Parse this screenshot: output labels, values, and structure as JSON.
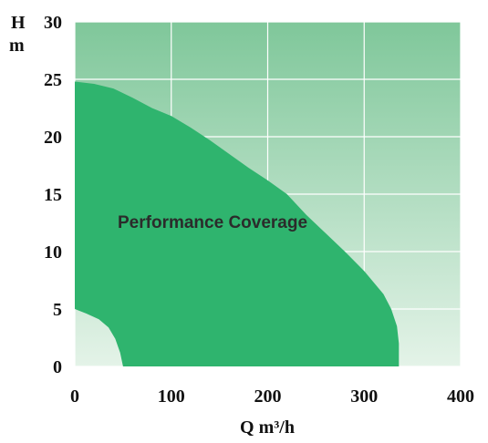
{
  "chart_data": {
    "type": "area",
    "xlabel": "Q m³/h",
    "ylabel_top": "H",
    "ylabel_bottom": "m",
    "xlim": [
      0,
      400
    ],
    "ylim": [
      0,
      30
    ],
    "x_ticks": [
      0,
      100,
      200,
      300,
      400
    ],
    "y_ticks": [
      0,
      5,
      10,
      15,
      20,
      25,
      30
    ],
    "grid": true,
    "annotation": "Performance Coverage",
    "colors": {
      "region_fill": "#2fb46e",
      "background_top": "#7fc79a",
      "background_bottom": "#e4f3e8",
      "grid": "#ffffff"
    },
    "region_upper_boundary": [
      {
        "x": 0,
        "y": 24.8
      },
      {
        "x": 20,
        "y": 24.6
      },
      {
        "x": 40,
        "y": 24.2
      },
      {
        "x": 60,
        "y": 23.4
      },
      {
        "x": 80,
        "y": 22.5
      },
      {
        "x": 100,
        "y": 21.8
      },
      {
        "x": 120,
        "y": 20.8
      },
      {
        "x": 140,
        "y": 19.7
      },
      {
        "x": 160,
        "y": 18.5
      },
      {
        "x": 180,
        "y": 17.3
      },
      {
        "x": 200,
        "y": 16.2
      },
      {
        "x": 220,
        "y": 15.0
      },
      {
        "x": 240,
        "y": 13.2
      },
      {
        "x": 260,
        "y": 11.6
      },
      {
        "x": 280,
        "y": 10.0
      },
      {
        "x": 300,
        "y": 8.3
      },
      {
        "x": 320,
        "y": 6.3
      },
      {
        "x": 328,
        "y": 5.0
      },
      {
        "x": 334,
        "y": 3.5
      },
      {
        "x": 336,
        "y": 2.0
      },
      {
        "x": 336,
        "y": 0
      }
    ],
    "region_lower_boundary": [
      {
        "x": 50,
        "y": 0
      },
      {
        "x": 47,
        "y": 1.2
      },
      {
        "x": 42,
        "y": 2.4
      },
      {
        "x": 35,
        "y": 3.4
      },
      {
        "x": 25,
        "y": 4.1
      },
      {
        "x": 12,
        "y": 4.6
      },
      {
        "x": 0,
        "y": 5.0
      }
    ]
  }
}
